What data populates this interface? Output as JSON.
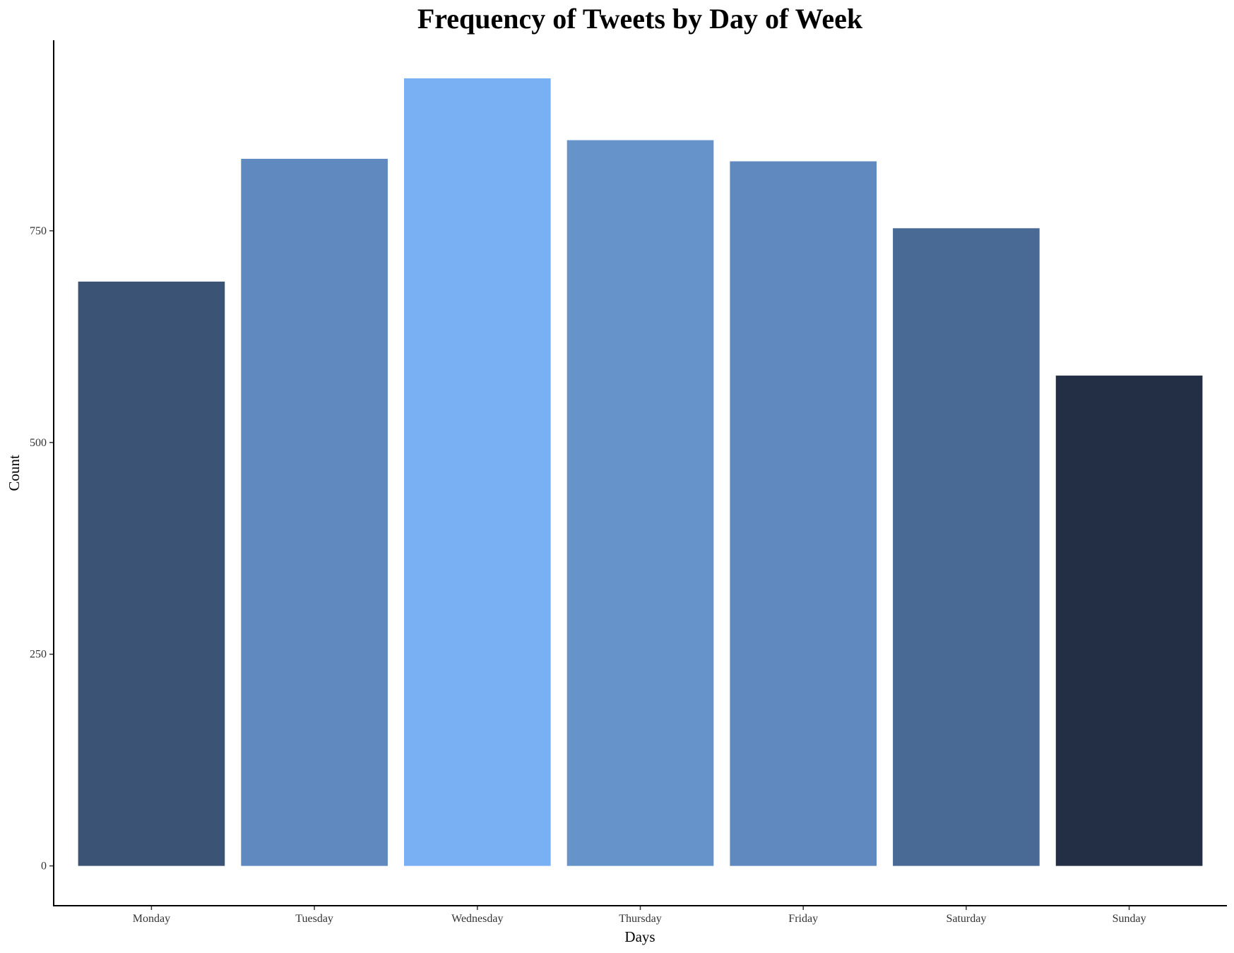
{
  "chart_data": {
    "type": "bar",
    "title": "Frequency of Tweets by Day of Week",
    "xlabel": "Days",
    "ylabel": "Count",
    "categories": [
      "Monday",
      "Tuesday",
      "Wednesday",
      "Thursday",
      "Friday",
      "Saturday",
      "Sunday"
    ],
    "values": [
      690,
      835,
      930,
      857,
      832,
      753,
      579
    ],
    "bar_colors": [
      "#3b5476",
      "#5f89bf",
      "#79aff3",
      "#6593ca",
      "#6089bf",
      "#486a95",
      "#232f45"
    ],
    "yticks": [
      0,
      250,
      500,
      750
    ],
    "ylim": [
      -47,
      975
    ],
    "grid": false,
    "legend": "none"
  }
}
